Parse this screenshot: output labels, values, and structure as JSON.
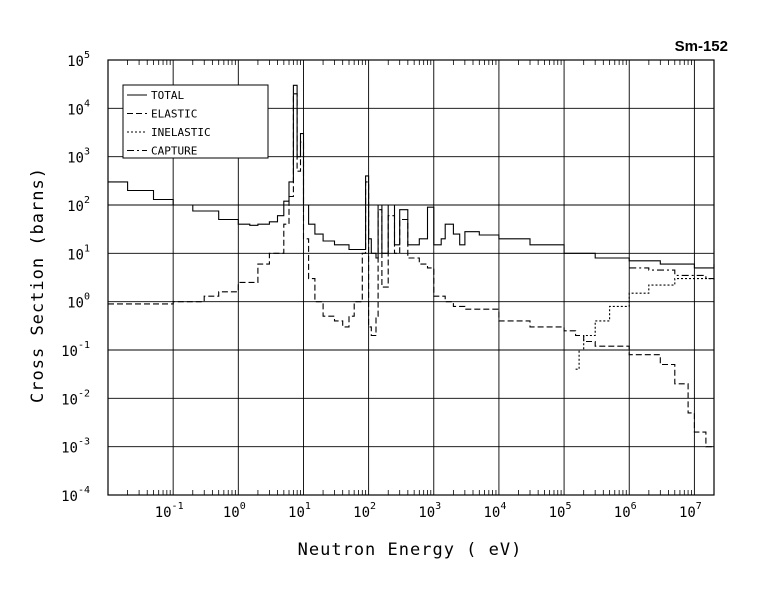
{
  "chart_data": {
    "type": "line",
    "title": "Sm-152",
    "xlabel": "Neutron Energy ( eV)",
    "ylabel": "Cross Section (barns)",
    "x_scale": "log",
    "y_scale": "log",
    "xlim": [
      0.01,
      20000000
    ],
    "ylim": [
      0.0001,
      100000
    ],
    "x_ticks": [
      {
        "base": "10",
        "exp": "-1",
        "value": 0.1
      },
      {
        "base": "10",
        "exp": "0",
        "value": 1
      },
      {
        "base": "10",
        "exp": "1",
        "value": 10
      },
      {
        "base": "10",
        "exp": "2",
        "value": 100
      },
      {
        "base": "10",
        "exp": "3",
        "value": 1000
      },
      {
        "base": "10",
        "exp": "4",
        "value": 10000
      },
      {
        "base": "10",
        "exp": "5",
        "value": 100000
      },
      {
        "base": "10",
        "exp": "6",
        "value": 1000000
      },
      {
        "base": "10",
        "exp": "7",
        "value": 10000000
      }
    ],
    "y_ticks": [
      {
        "base": "10",
        "exp": "5",
        "value": 100000
      },
      {
        "base": "10",
        "exp": "4",
        "value": 10000
      },
      {
        "base": "10",
        "exp": "3",
        "value": 1000
      },
      {
        "base": "10",
        "exp": "2",
        "value": 100
      },
      {
        "base": "10",
        "exp": "1",
        "value": 10
      },
      {
        "base": "10",
        "exp": "0",
        "value": 1
      },
      {
        "base": "10",
        "exp": "-1",
        "value": 0.1
      },
      {
        "base": "10",
        "exp": "-2",
        "value": 0.01
      },
      {
        "base": "10",
        "exp": "-3",
        "value": 0.001
      },
      {
        "base": "10",
        "exp": "-4",
        "value": 0.0001
      }
    ],
    "grid": true,
    "legend_position": "top-left",
    "series": [
      {
        "name": "TOTAL",
        "style": "solid",
        "points": [
          [
            0.01,
            300
          ],
          [
            0.02,
            200
          ],
          [
            0.05,
            130
          ],
          [
            0.1,
            100
          ],
          [
            0.2,
            75
          ],
          [
            0.5,
            50
          ],
          [
            1,
            40
          ],
          [
            1.5,
            38
          ],
          [
            2,
            40
          ],
          [
            3,
            45
          ],
          [
            4,
            60
          ],
          [
            5,
            120
          ],
          [
            6,
            300
          ],
          [
            7,
            30000
          ],
          [
            8,
            1000
          ],
          [
            9,
            3000
          ],
          [
            10,
            100
          ],
          [
            12,
            40
          ],
          [
            15,
            25
          ],
          [
            20,
            18
          ],
          [
            30,
            15
          ],
          [
            50,
            12
          ],
          [
            70,
            12
          ],
          [
            90,
            400
          ],
          [
            100,
            20
          ],
          [
            110,
            10
          ],
          [
            130,
            8
          ],
          [
            140,
            100
          ],
          [
            160,
            10
          ],
          [
            200,
            100
          ],
          [
            250,
            15
          ],
          [
            300,
            80
          ],
          [
            400,
            15
          ],
          [
            600,
            20
          ],
          [
            800,
            90
          ],
          [
            1000,
            15
          ],
          [
            1300,
            20
          ],
          [
            1500,
            40
          ],
          [
            2000,
            25
          ],
          [
            2500,
            15
          ],
          [
            3000,
            28
          ],
          [
            5000,
            24
          ],
          [
            10000,
            20
          ],
          [
            30000,
            15
          ],
          [
            100000,
            10
          ],
          [
            300000,
            8
          ],
          [
            1000000,
            7
          ],
          [
            3000000,
            6
          ],
          [
            10000000,
            5
          ],
          [
            20000000,
            6
          ]
        ]
      },
      {
        "name": "ELASTIC",
        "style": "dashed",
        "points": [
          [
            0.01,
            0.9
          ],
          [
            0.05,
            0.9
          ],
          [
            0.1,
            1
          ],
          [
            0.3,
            1.3
          ],
          [
            0.5,
            1.6
          ],
          [
            1,
            2.5
          ],
          [
            2,
            6
          ],
          [
            3,
            10
          ],
          [
            5,
            40
          ],
          [
            6,
            150
          ],
          [
            7,
            20000
          ],
          [
            8,
            500
          ],
          [
            9,
            2000
          ],
          [
            10,
            20
          ],
          [
            12,
            3
          ],
          [
            15,
            1
          ],
          [
            20,
            0.5
          ],
          [
            30,
            0.4
          ],
          [
            40,
            0.3
          ],
          [
            50,
            0.5
          ],
          [
            60,
            1
          ],
          [
            80,
            10
          ],
          [
            90,
            300
          ],
          [
            100,
            0.3
          ],
          [
            110,
            0.2
          ],
          [
            130,
            0.5
          ],
          [
            140,
            80
          ],
          [
            160,
            2
          ],
          [
            200,
            60
          ],
          [
            250,
            10
          ],
          [
            300,
            50
          ],
          [
            400,
            8
          ],
          [
            600,
            6
          ],
          [
            800,
            5
          ],
          [
            1000,
            1.3
          ],
          [
            1500,
            1
          ],
          [
            2000,
            0.8
          ],
          [
            3000,
            0.7
          ],
          [
            10000,
            0.4
          ],
          [
            30000,
            0.3
          ],
          [
            100000,
            0.25
          ],
          [
            150000,
            0.2
          ],
          [
            200000,
            0.15
          ],
          [
            300000,
            0.12
          ],
          [
            1000000,
            0.08
          ],
          [
            3000000,
            0.05
          ],
          [
            5000000,
            0.02
          ],
          [
            8000000,
            0.005
          ],
          [
            10000000,
            0.002
          ],
          [
            15000000,
            0.001
          ],
          [
            20000000,
            0.001
          ]
        ]
      },
      {
        "name": "INELASTIC",
        "style": "dotted",
        "points": [
          [
            150000,
            0.04
          ],
          [
            170000,
            0.1
          ],
          [
            200000,
            0.2
          ],
          [
            300000,
            0.4
          ],
          [
            500000,
            0.8
          ],
          [
            1000000,
            1.5
          ],
          [
            2000000,
            2.2
          ],
          [
            5000000,
            3
          ],
          [
            10000000,
            3
          ],
          [
            20000000,
            3
          ]
        ]
      },
      {
        "name": "CAPTURE",
        "style": "dash-dot",
        "points": [
          [
            1000000,
            5
          ],
          [
            2000000,
            4.5
          ],
          [
            5000000,
            3.5
          ],
          [
            10000000,
            3.5
          ],
          [
            15000000,
            3
          ],
          [
            20000000,
            2.5
          ]
        ]
      }
    ]
  }
}
